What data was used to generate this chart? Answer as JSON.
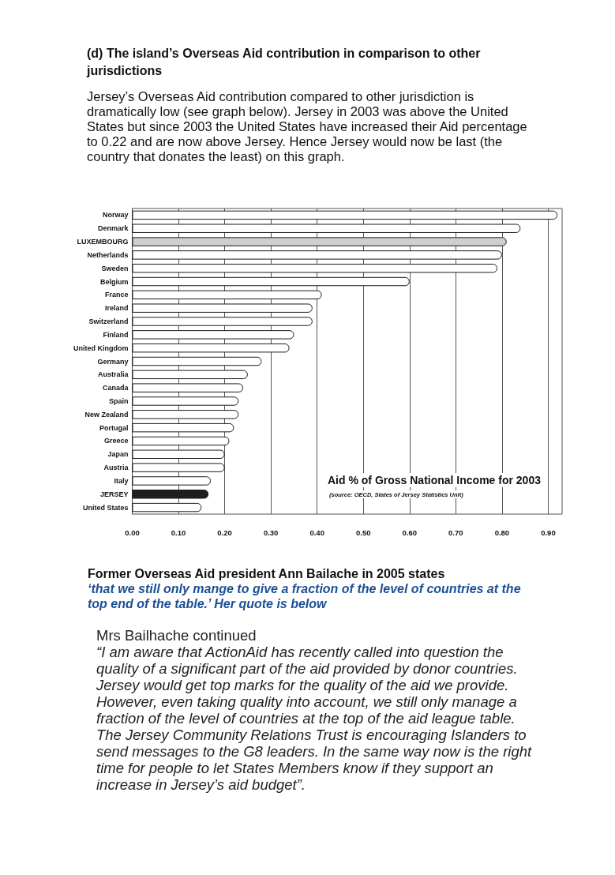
{
  "chart_data": {
    "type": "bar",
    "orientation": "horizontal",
    "title": "Aid % of Gross National Income for 2003",
    "categories": [
      "Norway",
      "Denmark",
      "LUXEMBOURG",
      "Netherlands",
      "Sweden",
      "Belgium",
      "France",
      "Ireland",
      "Switzerland",
      "Finland",
      "United Kingdom",
      "Germany",
      "Australia",
      "Canada",
      "Spain",
      "New Zealand",
      "Portugal",
      "Greece",
      "Japan",
      "Austria",
      "Italy",
      "JERSEY",
      "United States"
    ],
    "values": [
      0.92,
      0.84,
      0.81,
      0.8,
      0.79,
      0.6,
      0.41,
      0.39,
      0.39,
      0.35,
      0.34,
      0.28,
      0.25,
      0.24,
      0.23,
      0.23,
      0.22,
      0.21,
      0.2,
      0.2,
      0.17,
      0.165,
      0.15
    ],
    "colors": [
      "#ffffff",
      "#ffffff",
      "#cfcfcf",
      "#ffffff",
      "#ffffff",
      "#ffffff",
      "#ffffff",
      "#ffffff",
      "#ffffff",
      "#ffffff",
      "#ffffff",
      "#ffffff",
      "#ffffff",
      "#ffffff",
      "#ffffff",
      "#ffffff",
      "#ffffff",
      "#ffffff",
      "#ffffff",
      "#ffffff",
      "#ffffff",
      "#1e1e1e",
      "#ffffff"
    ],
    "xlim": [
      0,
      0.93
    ],
    "xticks": [
      {
        "value": 0,
        "label": "0.00"
      },
      {
        "value": 0.1,
        "label": "0.10"
      },
      {
        "value": 0.2,
        "label": "0.20"
      },
      {
        "value": 0.3,
        "label": "0.30"
      },
      {
        "value": 0.4,
        "label": "0.40"
      },
      {
        "value": 0.5,
        "label": "0.50"
      },
      {
        "value": 0.6,
        "label": "0.60"
      },
      {
        "value": 0.7,
        "label": "0.70"
      },
      {
        "value": 0.8,
        "label": "0.80"
      },
      {
        "value": 0.9,
        "label": "0.90"
      }
    ],
    "grid": "x",
    "annotations": [
      "(d) The island’s Overseas Aid contribution in comparison to other jurisdictions",
      "Jersey’s Overseas Aid contribution compared to other jurisdiction is dramatically low (see graph below). Jersey in 2003 was above the United States but since 2003 the United States have increased their Aid percentage to 0.22 and are now above Jersey. Hence Jersey would now be last (the country that donates the least) on this graph.",
      "(source: OECD, States of Jersey Statistics Unit)",
      "Former Overseas Aid president Ann Bailache in 2005 states",
      "‘that we still only mange to give a fraction of the level of countries at the top end of the table.’ Her quote is below",
      "Mrs Bailhache continued",
      "“I am aware that ActionAid has recently called into question the quality of a significant part of the aid provided by donor countries.  Jersey would get top marks for the quality of the aid we provide.  However, even taking quality into account, we still only manage a fraction of the level of countries at the top of the aid league table.  The Jersey Community Relations Trust is encouraging Islanders to send messages to the G8 leaders. In the same way now is the right time for people to let States Members know if they support an increase in Jersey’s aid budget”."
    ]
  }
}
